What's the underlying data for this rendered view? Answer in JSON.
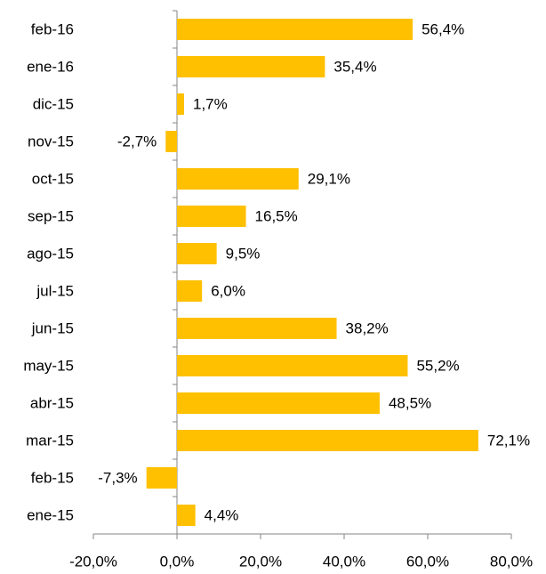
{
  "chart_data": {
    "type": "bar",
    "orientation": "horizontal",
    "categories": [
      "feb-16",
      "ene-16",
      "dic-15",
      "nov-15",
      "oct-15",
      "sep-15",
      "ago-15",
      "jul-15",
      "jun-15",
      "may-15",
      "abr-15",
      "mar-15",
      "feb-15",
      "ene-15"
    ],
    "values": [
      56.4,
      35.4,
      1.7,
      -2.7,
      29.1,
      16.5,
      9.5,
      6.0,
      38.2,
      55.2,
      48.5,
      72.1,
      -7.3,
      4.4
    ],
    "value_labels": [
      "56,4%",
      "35,4%",
      "1,7%",
      "-2,7%",
      "29,1%",
      "16,5%",
      "9,5%",
      "6,0%",
      "38,2%",
      "55,2%",
      "48,5%",
      "72,1%",
      "-7,3%",
      "4,4%"
    ],
    "color": "#ffc000",
    "xlim": [
      -20,
      80
    ],
    "xticks": [
      {
        "value": -20,
        "label": "-20,0%"
      },
      {
        "value": 0,
        "label": "0,0%"
      },
      {
        "value": 20,
        "label": "20,0%"
      },
      {
        "value": 40,
        "label": "40,0%"
      },
      {
        "value": 60,
        "label": "60,0%"
      },
      {
        "value": 80,
        "label": "80,0%"
      }
    ],
    "grid": false
  }
}
